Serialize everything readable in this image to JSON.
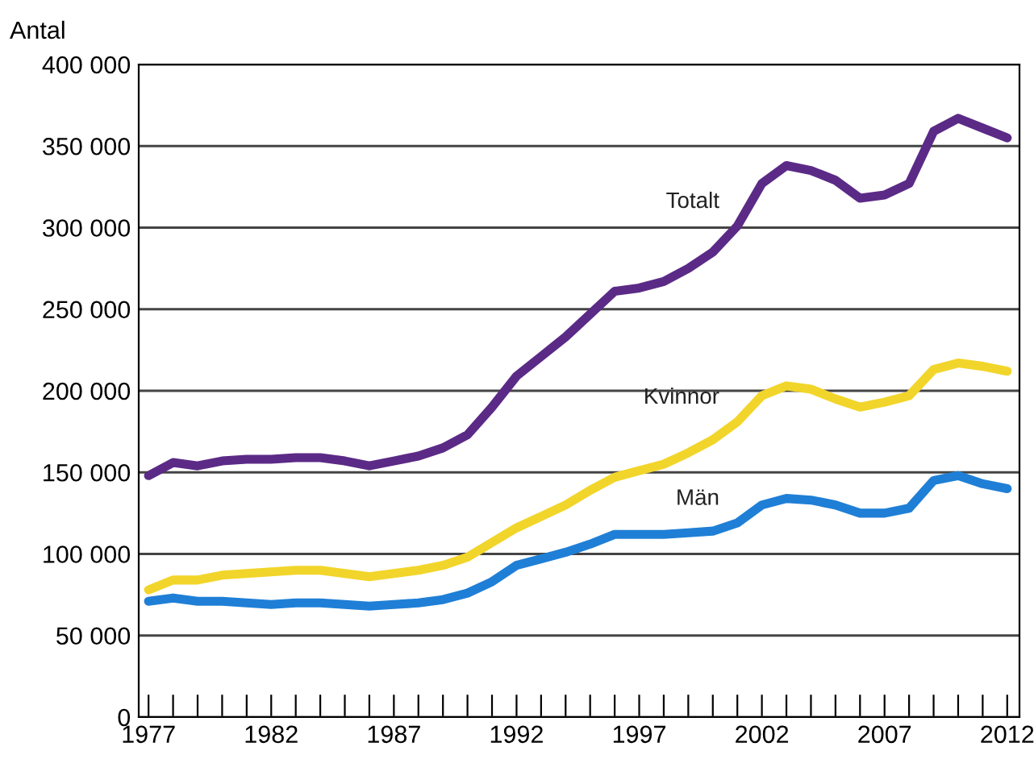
{
  "chart_data": {
    "type": "line",
    "ylabel": "Antal",
    "x": [
      1977,
      1978,
      1979,
      1980,
      1981,
      1982,
      1983,
      1984,
      1985,
      1986,
      1987,
      1988,
      1989,
      1990,
      1991,
      1992,
      1993,
      1994,
      1995,
      1996,
      1997,
      1998,
      1999,
      2000,
      2001,
      2002,
      2003,
      2004,
      2005,
      2006,
      2007,
      2008,
      2009,
      2010,
      2011,
      2012
    ],
    "series": [
      {
        "name": "Totalt",
        "color": "#5b2a86",
        "values": [
          148000,
          156000,
          154000,
          157000,
          158000,
          158000,
          159000,
          159000,
          157000,
          154000,
          157000,
          160000,
          165000,
          173000,
          190000,
          209000,
          221000,
          233000,
          247000,
          261000,
          263000,
          267000,
          275000,
          285000,
          301000,
          327000,
          338000,
          335000,
          329000,
          318000,
          320000,
          327000,
          359000,
          367000,
          361000,
          355000
        ]
      },
      {
        "name": "Kvinnor",
        "color": "#f2d52a",
        "values": [
          78000,
          84000,
          84000,
          87000,
          88000,
          89000,
          90000,
          90000,
          88000,
          86000,
          88000,
          90000,
          93000,
          98000,
          107000,
          116000,
          123000,
          130000,
          139000,
          147000,
          151000,
          155000,
          162000,
          170000,
          181000,
          197000,
          203000,
          201000,
          195000,
          190000,
          193000,
          197000,
          213000,
          217000,
          215000,
          212000
        ]
      },
      {
        "name": "Män",
        "color": "#1f7fd6",
        "values": [
          71000,
          73000,
          71000,
          71000,
          70000,
          69000,
          70000,
          70000,
          69000,
          68000,
          69000,
          70000,
          72000,
          76000,
          83000,
          93000,
          97000,
          101000,
          106000,
          112000,
          112000,
          112000,
          113000,
          114000,
          119000,
          130000,
          134000,
          133000,
          130000,
          125000,
          125000,
          128000,
          145000,
          148000,
          143000,
          140000
        ]
      }
    ],
    "xlim": [
      1976.6,
      2012.5
    ],
    "xticks": [
      1977,
      {
        "value": 1978,
        "label": null
      },
      {
        "value": 1979,
        "label": null
      },
      {
        "value": 1980,
        "label": null
      },
      {
        "value": 1981,
        "label": null
      },
      1982,
      {
        "value": 1983,
        "label": null
      },
      {
        "value": 1984,
        "label": null
      },
      {
        "value": 1985,
        "label": null
      },
      {
        "value": 1986,
        "label": null
      },
      1987,
      {
        "value": 1988,
        "label": null
      },
      {
        "value": 1989,
        "label": null
      },
      {
        "value": 1990,
        "label": null
      },
      {
        "value": 1991,
        "label": null
      },
      1992,
      {
        "value": 1993,
        "label": null
      },
      {
        "value": 1994,
        "label": null
      },
      {
        "value": 1995,
        "label": null
      },
      {
        "value": 1996,
        "label": null
      },
      1997,
      {
        "value": 1998,
        "label": null
      },
      {
        "value": 1999,
        "label": null
      },
      {
        "value": 2000,
        "label": null
      },
      {
        "value": 2001,
        "label": null
      },
      2002,
      {
        "value": 2003,
        "label": null
      },
      {
        "value": 2004,
        "label": null
      },
      {
        "value": 2005,
        "label": null
      },
      {
        "value": 2006,
        "label": null
      },
      2007,
      {
        "value": 2008,
        "label": null
      },
      {
        "value": 2009,
        "label": null
      },
      {
        "value": 2010,
        "label": null
      },
      {
        "value": 2011,
        "label": null
      },
      2012
    ],
    "ylim": [
      0,
      400000
    ],
    "yticks": [
      0,
      {
        "value": 50000,
        "label": "50 000"
      },
      {
        "value": 100000,
        "label": "100 000"
      },
      {
        "value": 150000,
        "label": "150 000"
      },
      {
        "value": 200000,
        "label": "200 000"
      },
      {
        "value": 250000,
        "label": "250 000"
      },
      {
        "value": 300000,
        "label": "300 000"
      },
      {
        "value": 350000,
        "label": "350 000"
      },
      {
        "value": 400000,
        "label": "400 000"
      }
    ],
    "grid": "y",
    "legend": false,
    "marker": "none",
    "line_style": "solid"
  }
}
